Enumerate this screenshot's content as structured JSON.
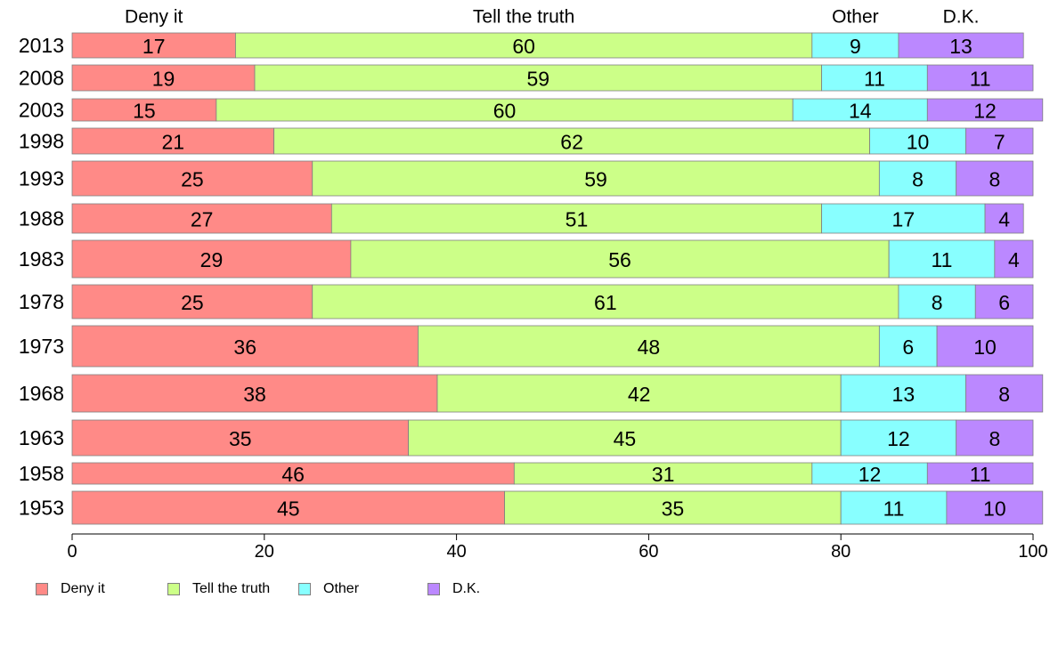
{
  "chart_data": {
    "type": "bar",
    "orientation": "horizontal",
    "stacked": true,
    "categories": [
      "2013",
      "2008",
      "2003",
      "1998",
      "1993",
      "1988",
      "1983",
      "1978",
      "1973",
      "1968",
      "1963",
      "1958",
      "1953"
    ],
    "series": [
      {
        "name": "Deny it",
        "color": "#ff8a87",
        "values": [
          17,
          19,
          15,
          21,
          25,
          27,
          29,
          25,
          36,
          38,
          35,
          46,
          45
        ]
      },
      {
        "name": "Tell the truth",
        "color": "#ccff88",
        "values": [
          60,
          59,
          60,
          62,
          59,
          51,
          56,
          61,
          48,
          42,
          45,
          31,
          35
        ]
      },
      {
        "name": "Other",
        "color": "#88ffff",
        "values": [
          9,
          11,
          14,
          10,
          8,
          17,
          11,
          8,
          6,
          13,
          12,
          12,
          11
        ]
      },
      {
        "name": "D.K.",
        "color": "#bb88ff",
        "values": [
          13,
          11,
          12,
          7,
          8,
          4,
          4,
          6,
          10,
          8,
          8,
          11,
          10
        ]
      }
    ],
    "xlim": [
      0,
      100
    ],
    "xticks": [
      0,
      20,
      40,
      60,
      80,
      100
    ],
    "header_labels": [
      "Deny it",
      "Tell the truth",
      "Other",
      "D.K."
    ],
    "legend_position": "bottom-left",
    "grid": false
  }
}
